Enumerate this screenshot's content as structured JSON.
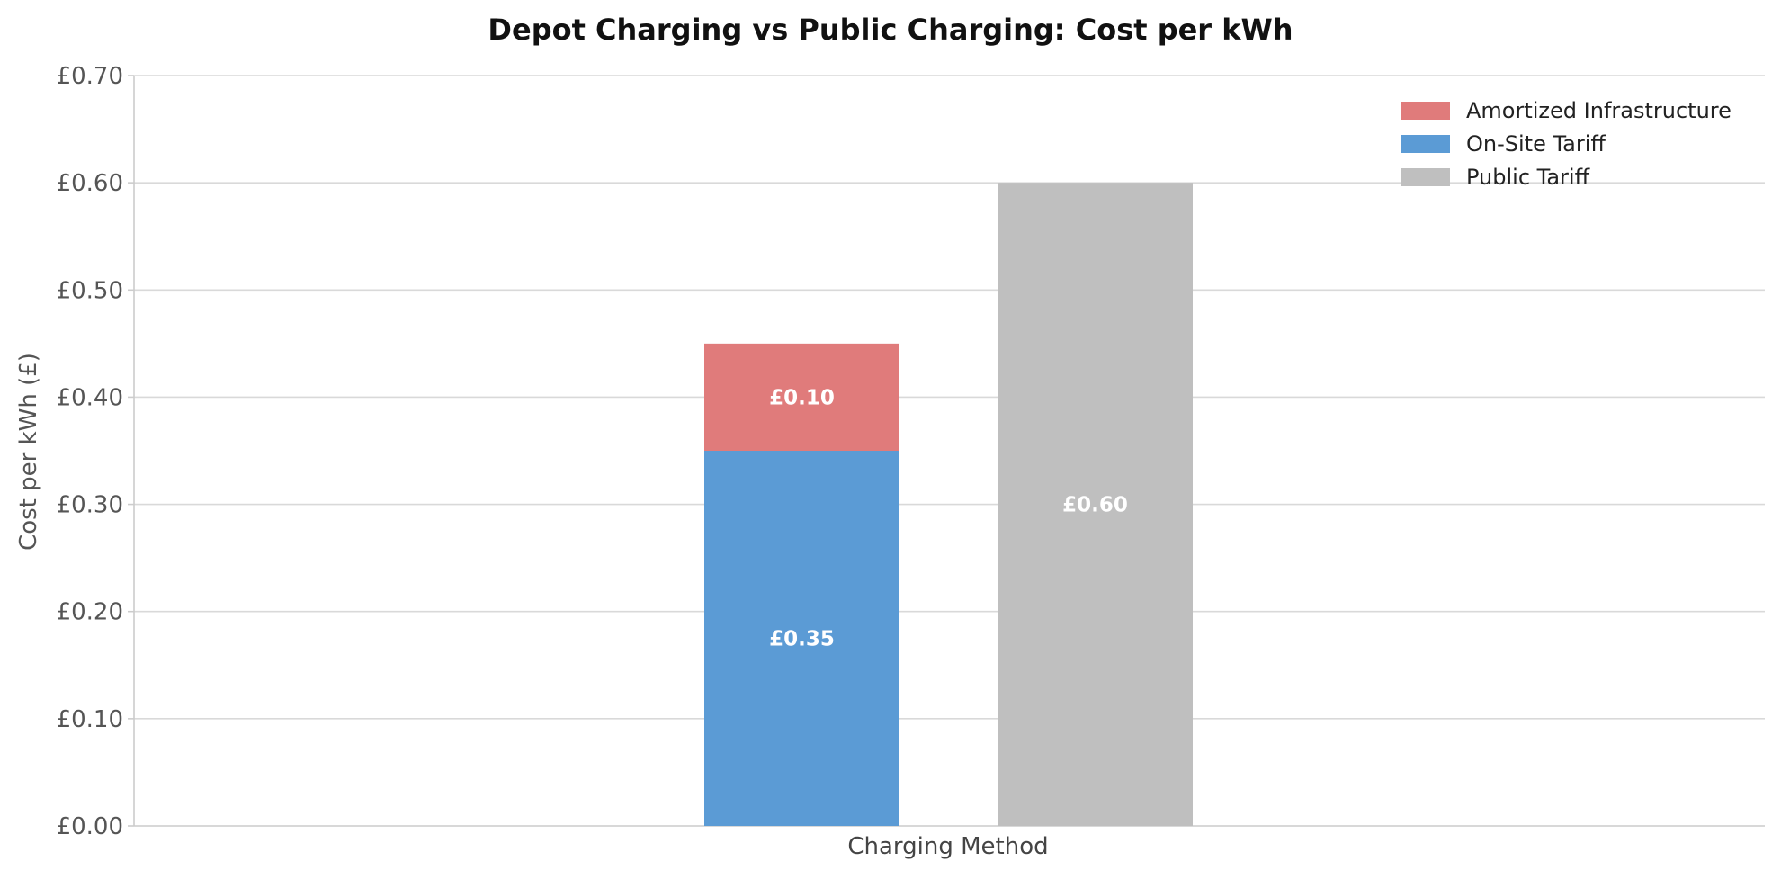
{
  "chart_data": {
    "type": "bar",
    "stacked": true,
    "title": "Depot Charging vs Public Charging: Cost per kWh",
    "xlabel": "Charging Method",
    "ylabel": "Cost per kWh (£)",
    "ylim": [
      0,
      0.7
    ],
    "y_ticks": [
      "£0.00",
      "£0.10",
      "£0.20",
      "£0.30",
      "£0.40",
      "£0.50",
      "£0.60",
      "£0.70"
    ],
    "grid": "horizontal",
    "legend_position": "top-right",
    "bars": [
      {
        "segments": [
          {
            "series": "On-Site Tariff",
            "value": 0.35,
            "label": "£0.35"
          },
          {
            "series": "Amortized Infrastructure",
            "value": 0.1,
            "label": "£0.10"
          }
        ]
      },
      {
        "segments": [
          {
            "series": "Public Tariff",
            "value": 0.6,
            "label": "£0.60"
          }
        ]
      }
    ],
    "series": [
      {
        "name": "Amortized Infrastructure",
        "color": "#e07b7b"
      },
      {
        "name": "On-Site Tariff",
        "color": "#5b9bd5"
      },
      {
        "name": "Public Tariff",
        "color": "#bfbfbf"
      }
    ]
  }
}
